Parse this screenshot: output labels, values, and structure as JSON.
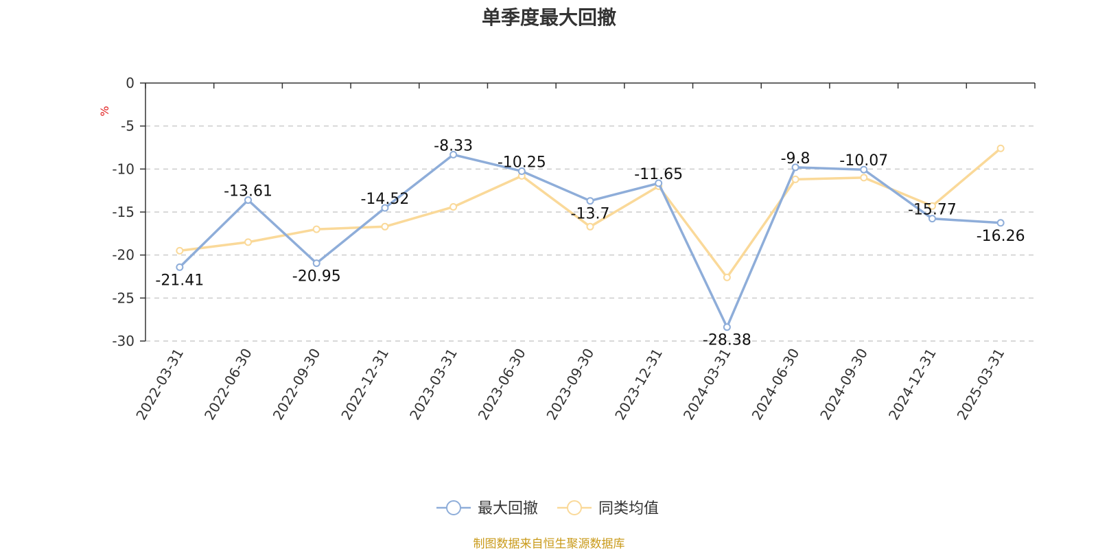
{
  "chart_data": {
    "type": "line",
    "title": "单季度最大回撤",
    "ylabel": "%",
    "ylim": [
      -30,
      0
    ],
    "yticks": [
      "0",
      "-5",
      "-10",
      "-15",
      "-20",
      "-25",
      "-30"
    ],
    "grid": true,
    "legend_position": "bottom-center",
    "categories": [
      "2022-03-31",
      "2022-06-30",
      "2022-09-30",
      "2022-12-31",
      "2023-03-31",
      "2023-06-30",
      "2023-09-30",
      "2023-12-31",
      "2024-03-31",
      "2024-06-30",
      "2024-09-30",
      "2024-12-31",
      "2025-03-31"
    ],
    "series": [
      {
        "name": "最大回撤",
        "color": "#8eadd9",
        "values": [
          -21.41,
          -13.61,
          -20.95,
          -14.52,
          -8.33,
          -10.25,
          -13.7,
          -11.65,
          -28.38,
          -9.8,
          -10.07,
          -15.77,
          -16.26
        ],
        "labels": [
          "-21.41",
          "-13.61",
          "-20.95",
          "-14.52",
          "-8.33",
          "-10.25",
          "-13.7",
          "-11.65",
          "-28.38",
          "-9.8",
          "-10.07",
          "-15.77",
          "-16.26"
        ]
      },
      {
        "name": "同类均值",
        "color": "#fad999",
        "values": [
          -19.5,
          -18.5,
          -17.0,
          -16.7,
          -14.4,
          -10.8,
          -16.7,
          -12.0,
          -22.6,
          -11.2,
          -11.0,
          -14.3,
          -7.6
        ]
      }
    ],
    "source_note": "制图数据来自恒生聚源数据库"
  }
}
